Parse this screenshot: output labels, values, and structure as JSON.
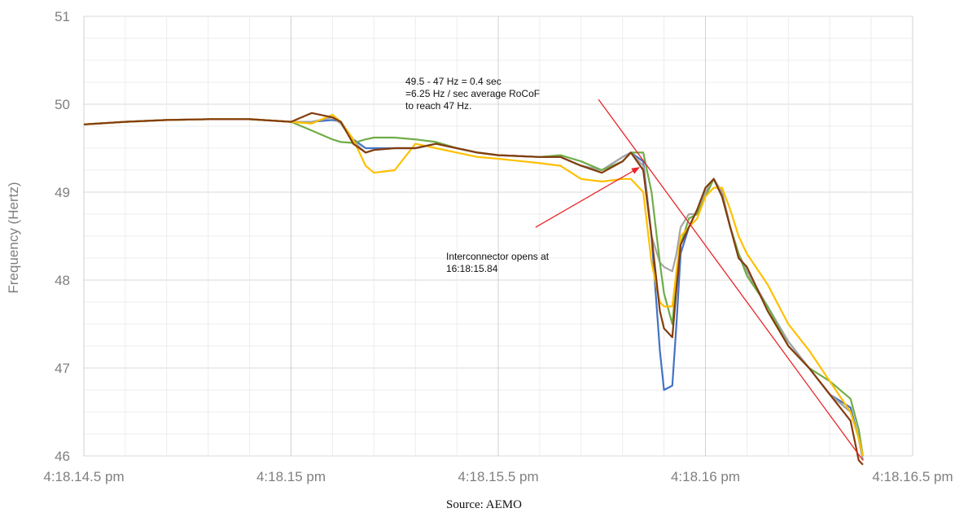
{
  "chart_data": {
    "type": "line",
    "title": "",
    "xlabel": "",
    "ylabel": "Frequency (Hertz)",
    "ylim": [
      46,
      51
    ],
    "xlim": [
      14.5,
      16.5
    ],
    "grid": true,
    "x_tick_values": [
      14.5,
      15.0,
      15.5,
      16.0,
      16.5
    ],
    "x_tick_labels": [
      "4:18.14.5 pm",
      "4:18.15 pm",
      "4:18.15.5 pm",
      "4:18.16 pm",
      "4:18.16.5 pm"
    ],
    "y_tick_labels": [
      "46",
      "47",
      "48",
      "49",
      "50",
      "51"
    ],
    "series": [
      {
        "color": "#4472c4",
        "x": [
          14.5,
          14.6,
          14.7,
          14.8,
          14.9,
          15.0,
          15.05,
          15.1,
          15.12,
          15.15,
          15.18,
          15.2,
          15.25,
          15.3,
          15.35,
          15.4,
          15.45,
          15.5,
          15.6,
          15.65,
          15.7,
          15.75,
          15.8,
          15.82,
          15.85,
          15.87,
          15.89,
          15.9,
          15.92,
          15.93,
          15.94,
          15.96,
          15.98,
          16.0,
          16.02,
          16.04,
          16.06,
          16.08,
          16.1,
          16.15,
          16.2,
          16.25,
          16.3,
          16.35,
          16.37,
          16.38
        ],
        "values": [
          49.77,
          49.8,
          49.82,
          49.83,
          49.83,
          49.8,
          49.8,
          49.82,
          49.8,
          49.6,
          49.5,
          49.5,
          49.5,
          49.5,
          49.55,
          49.5,
          49.45,
          49.42,
          49.4,
          49.4,
          49.3,
          49.25,
          49.4,
          49.45,
          49.35,
          48.5,
          47.2,
          46.75,
          46.8,
          47.5,
          48.3,
          48.6,
          48.8,
          49.0,
          49.15,
          49.0,
          48.6,
          48.3,
          48.1,
          47.7,
          47.3,
          47.0,
          46.7,
          46.55,
          46.2,
          45.95
        ]
      },
      {
        "color": "#a5a5a5",
        "x": [
          14.5,
          14.6,
          14.7,
          14.8,
          14.9,
          15.0,
          15.05,
          15.1,
          15.12,
          15.15,
          15.18,
          15.2,
          15.25,
          15.3,
          15.35,
          15.4,
          15.45,
          15.5,
          15.6,
          15.65,
          15.7,
          15.75,
          15.8,
          15.82,
          15.85,
          15.87,
          15.89,
          15.9,
          15.92,
          15.93,
          15.94,
          15.96,
          15.98,
          16.0,
          16.02,
          16.04,
          16.06,
          16.08,
          16.1,
          16.15,
          16.2,
          16.25,
          16.3,
          16.35,
          16.37,
          16.38
        ],
        "values": [
          49.77,
          49.8,
          49.82,
          49.83,
          49.83,
          49.8,
          49.8,
          49.85,
          49.78,
          49.58,
          49.45,
          49.48,
          49.5,
          49.5,
          49.55,
          49.5,
          49.45,
          49.42,
          49.4,
          49.4,
          49.3,
          49.25,
          49.4,
          49.45,
          49.3,
          48.5,
          48.2,
          48.15,
          48.1,
          48.3,
          48.6,
          48.75,
          48.75,
          49.0,
          49.15,
          49.0,
          48.6,
          48.3,
          48.1,
          47.7,
          47.3,
          47.0,
          46.7,
          46.5,
          46.2,
          45.95
        ]
      },
      {
        "color": "#70ad47",
        "x": [
          14.5,
          14.6,
          14.7,
          14.8,
          14.9,
          15.0,
          15.05,
          15.1,
          15.12,
          15.15,
          15.18,
          15.2,
          15.25,
          15.3,
          15.35,
          15.4,
          15.45,
          15.5,
          15.6,
          15.65,
          15.7,
          15.75,
          15.8,
          15.82,
          15.85,
          15.87,
          15.89,
          15.9,
          15.92,
          15.93,
          15.94,
          15.96,
          15.98,
          16.0,
          16.02,
          16.04,
          16.06,
          16.08,
          16.1,
          16.15,
          16.2,
          16.25,
          16.3,
          16.35,
          16.37,
          16.38
        ],
        "values": [
          49.77,
          49.8,
          49.82,
          49.83,
          49.83,
          49.8,
          49.7,
          49.6,
          49.57,
          49.56,
          49.6,
          49.62,
          49.62,
          49.6,
          49.57,
          49.5,
          49.45,
          49.42,
          49.4,
          49.42,
          49.35,
          49.25,
          49.35,
          49.45,
          49.45,
          49.0,
          48.2,
          47.85,
          47.5,
          48.0,
          48.4,
          48.7,
          48.75,
          48.95,
          49.15,
          48.95,
          48.6,
          48.3,
          48.05,
          47.7,
          47.25,
          47.0,
          46.85,
          46.65,
          46.3,
          46.0
        ]
      },
      {
        "color": "#ffc000",
        "x": [
          14.5,
          14.6,
          14.7,
          14.8,
          14.9,
          15.0,
          15.05,
          15.1,
          15.12,
          15.15,
          15.18,
          15.2,
          15.25,
          15.3,
          15.35,
          15.4,
          15.45,
          15.5,
          15.6,
          15.65,
          15.7,
          15.75,
          15.8,
          15.82,
          15.85,
          15.87,
          15.89,
          15.9,
          15.92,
          15.93,
          15.94,
          15.96,
          15.98,
          16.0,
          16.02,
          16.04,
          16.06,
          16.08,
          16.1,
          16.15,
          16.2,
          16.25,
          16.3,
          16.35,
          16.37,
          16.38
        ],
        "values": [
          49.77,
          49.8,
          49.82,
          49.83,
          49.83,
          49.8,
          49.78,
          49.88,
          49.8,
          49.6,
          49.3,
          49.22,
          49.25,
          49.55,
          49.5,
          49.45,
          49.4,
          49.38,
          49.33,
          49.3,
          49.15,
          49.12,
          49.15,
          49.15,
          49.0,
          48.2,
          47.75,
          47.7,
          47.7,
          48.1,
          48.5,
          48.6,
          48.7,
          48.95,
          49.05,
          49.05,
          48.8,
          48.5,
          48.3,
          47.95,
          47.5,
          47.2,
          46.85,
          46.5,
          46.2,
          46.0
        ]
      },
      {
        "color": "#843c0c",
        "x": [
          14.5,
          14.6,
          14.7,
          14.8,
          14.9,
          15.0,
          15.05,
          15.1,
          15.12,
          15.15,
          15.18,
          15.2,
          15.25,
          15.3,
          15.35,
          15.4,
          15.45,
          15.5,
          15.6,
          15.65,
          15.7,
          15.75,
          15.8,
          15.82,
          15.85,
          15.87,
          15.89,
          15.9,
          15.92,
          15.93,
          15.94,
          15.96,
          15.98,
          16.0,
          16.02,
          16.04,
          16.06,
          16.08,
          16.1,
          16.15,
          16.2,
          16.25,
          16.3,
          16.35,
          16.37,
          16.38
        ],
        "values": [
          49.77,
          49.8,
          49.82,
          49.83,
          49.83,
          49.8,
          49.9,
          49.85,
          49.8,
          49.55,
          49.45,
          49.48,
          49.5,
          49.5,
          49.55,
          49.5,
          49.45,
          49.42,
          49.4,
          49.4,
          49.3,
          49.22,
          49.35,
          49.45,
          49.25,
          48.5,
          47.65,
          47.45,
          47.35,
          47.9,
          48.4,
          48.6,
          48.8,
          49.05,
          49.15,
          48.95,
          48.6,
          48.25,
          48.15,
          47.65,
          47.25,
          47.0,
          46.7,
          46.4,
          45.95,
          45.9
        ]
      }
    ],
    "annotations": [
      {
        "lines": [
          "49.5 - 47 Hz = 0.4 sec",
          "=6.25 Hz / sec average RoCoF",
          "to reach 47 Hz."
        ],
        "color": "#111111",
        "line_color": "#e8262a",
        "line_from": [
          15.84,
          49.38
        ],
        "line_to": [
          16.38,
          45.95
        ]
      },
      {
        "lines": [
          "Interconnector opens at",
          "16:18:15.84"
        ],
        "color": "#111111",
        "arrow_color": "#e8262a",
        "arrow_from": [
          15.59,
          48.6
        ],
        "arrow_to": [
          15.84,
          49.28
        ]
      }
    ]
  },
  "source": "Source: AEMO"
}
